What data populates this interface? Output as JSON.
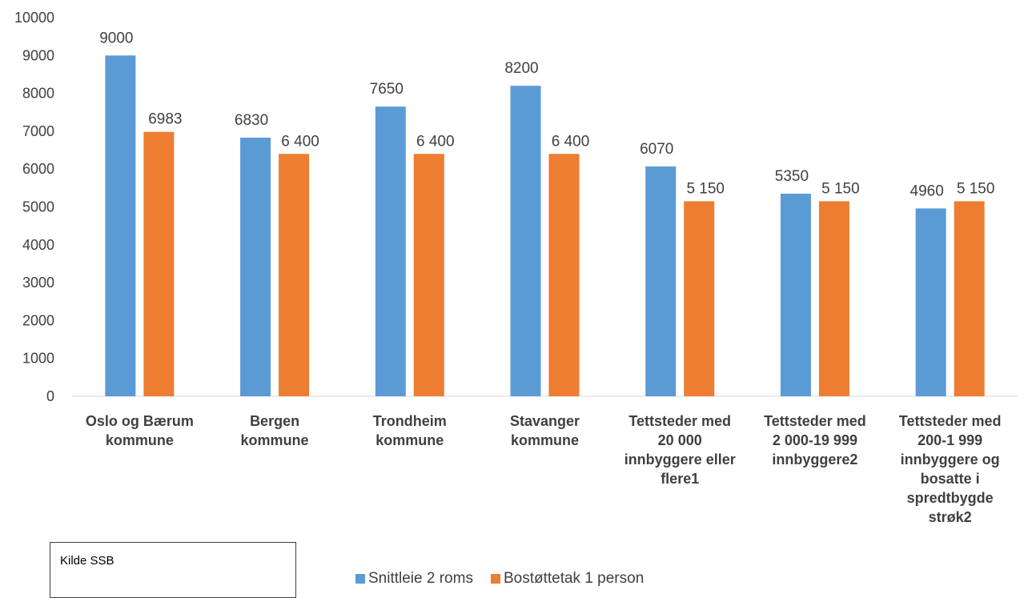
{
  "chart_data": {
    "type": "bar",
    "categories": [
      [
        "Oslo og Bærum",
        "kommune"
      ],
      [
        "Bergen",
        "kommune"
      ],
      [
        "Trondheim",
        "kommune"
      ],
      [
        "Stavanger",
        "kommune"
      ],
      [
        "Tettsteder med",
        "20 000",
        "innbyggere eller",
        "flere1"
      ],
      [
        "Tettsteder med",
        "2 000-19 999",
        "innbyggere2"
      ],
      [
        "Tettsteder med",
        "200-1 999",
        "innbyggere og",
        "bosatte i",
        "spredtbygde",
        "strøk2"
      ]
    ],
    "series": [
      {
        "name": "Snittleie 2 roms",
        "color": "#5B9BD5",
        "values": [
          9000,
          6830,
          7650,
          8200,
          6070,
          5350,
          4960
        ],
        "labels": [
          "9000",
          "6830",
          "7650",
          "8200",
          "6070",
          "5350",
          "4960"
        ]
      },
      {
        "name": "Bostøttetak 1 person",
        "color": "#ED7D31",
        "values": [
          6983,
          6400,
          6400,
          6400,
          5150,
          5150,
          5150
        ],
        "labels": [
          "6983",
          "6 400",
          "6 400",
          "6 400",
          "5 150",
          "5 150",
          "5 150"
        ]
      }
    ],
    "ylim": [
      0,
      10000
    ],
    "yticks": [
      0,
      1000,
      2000,
      3000,
      4000,
      5000,
      6000,
      7000,
      8000,
      9000,
      10000
    ],
    "grid": false,
    "legend_position": "bottom"
  },
  "source_note": "Kilde SSB"
}
